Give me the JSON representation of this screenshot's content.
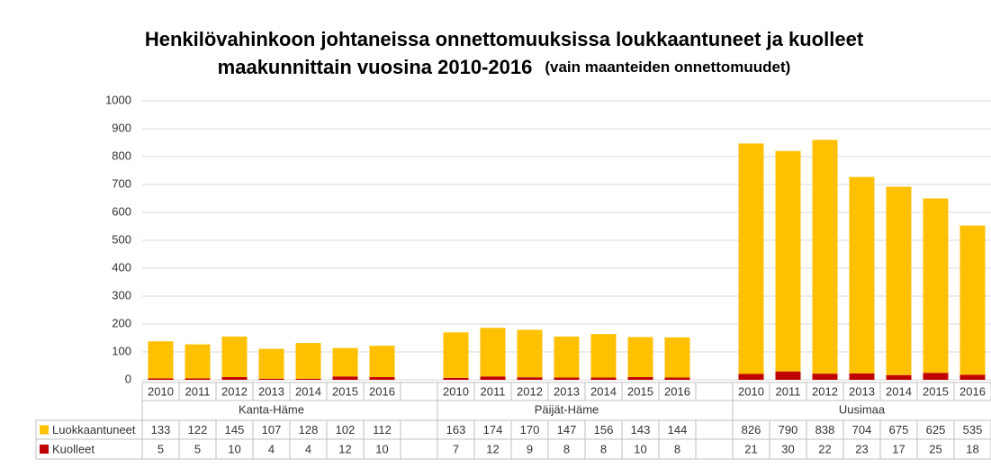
{
  "chart_data": {
    "type": "bar",
    "stacked": true,
    "title": "Henkilövahinkoon johtaneissa onnettomuuksissa loukkaantuneet ja kuolleet",
    "title_line2": "maakunnittain vuosina 2010-2016",
    "subtitle": "(vain maanteiden onnettomuudet)",
    "categories": [
      2010,
      2011,
      2012,
      2013,
      2014,
      2015,
      2016,
      null,
      2010,
      2011,
      2012,
      2013,
      2014,
      2015,
      2016,
      null,
      2010,
      2011,
      2012,
      2013,
      2014,
      2015,
      2016
    ],
    "groups": [
      "Kanta-Häme",
      "Päijät-Häme",
      "Uusimaa"
    ],
    "series": [
      {
        "name": "Kuolleet",
        "color": "#c00000",
        "values": [
          5,
          5,
          10,
          4,
          4,
          12,
          10,
          null,
          7,
          12,
          9,
          8,
          8,
          10,
          8,
          null,
          21,
          30,
          22,
          23,
          17,
          25,
          18
        ]
      },
      {
        "name": "Luokkaantuneet",
        "color": "#ffc000",
        "values": [
          133,
          122,
          145,
          107,
          128,
          102,
          112,
          null,
          163,
          174,
          170,
          147,
          156,
          143,
          144,
          null,
          826,
          790,
          838,
          704,
          675,
          625,
          535
        ]
      }
    ],
    "table_order": [
      1,
      0
    ],
    "ylim": [
      0,
      1000
    ],
    "yticks": [
      0,
      100,
      200,
      300,
      400,
      500,
      600,
      700,
      800,
      900,
      1000
    ],
    "grid": true
  }
}
